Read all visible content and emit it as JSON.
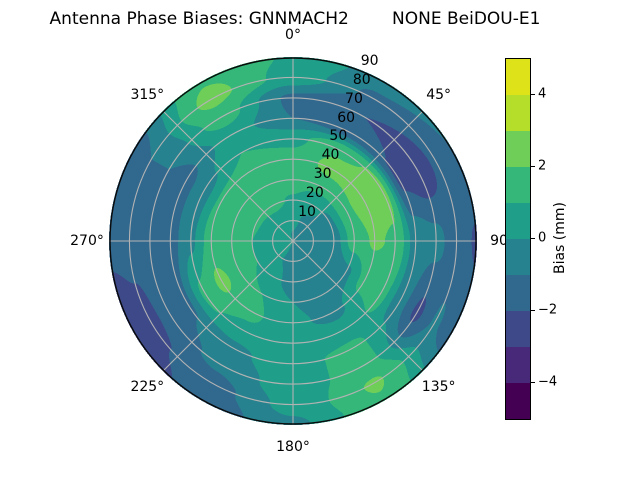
{
  "title": "Antenna Phase Biases: GNNMACH2        NONE BeiDOU-E1",
  "chart_data": {
    "type": "heatmap",
    "subtype": "polar_filled_contour",
    "title": "Antenna Phase Biases: GNNMACH2        NONE BeiDOU-E1",
    "background": "#ffffff",
    "grid_color": "#b3b3b3",
    "outline_color": "#0a0a0a",
    "angular_ticks": [
      {
        "angle_deg": 0,
        "label": "0°"
      },
      {
        "angle_deg": 45,
        "label": "45°"
      },
      {
        "angle_deg": 90,
        "label": "90"
      },
      {
        "angle_deg": 135,
        "label": "135°"
      },
      {
        "angle_deg": 180,
        "label": "180°"
      },
      {
        "angle_deg": 225,
        "label": "225°"
      },
      {
        "angle_deg": 270,
        "label": "270°"
      },
      {
        "angle_deg": 315,
        "label": "315°"
      }
    ],
    "radial_ticks": [
      {
        "zenith_deg": 10,
        "label": "10"
      },
      {
        "zenith_deg": 20,
        "label": "20"
      },
      {
        "zenith_deg": 30,
        "label": "30"
      },
      {
        "zenith_deg": 40,
        "label": "40"
      },
      {
        "zenith_deg": 50,
        "label": "50"
      },
      {
        "zenith_deg": 60,
        "label": "60"
      },
      {
        "zenith_deg": 70,
        "label": "70"
      },
      {
        "zenith_deg": 80,
        "label": "80"
      },
      {
        "zenith_deg": 90,
        "label": "90"
      }
    ],
    "radial_label_angle_deg": 22.5,
    "azimuth_deg": [
      0,
      30,
      60,
      90,
      120,
      150,
      180,
      210,
      240,
      270,
      300,
      330
    ],
    "zenith_deg": [
      0,
      10,
      20,
      30,
      40,
      50,
      60,
      70,
      80,
      90
    ],
    "bias_mm": [
      [
        -0.3,
        -0.4,
        -0.5,
        -0.5,
        -0.5,
        -0.4,
        -0.3,
        0.1,
        0.3,
        0.4,
        0.3,
        0.0
      ],
      [
        0.3,
        -0.2,
        -0.5,
        -0.6,
        -0.7,
        -0.7,
        -0.5,
        0.0,
        0.4,
        0.5,
        0.5,
        0.5
      ],
      [
        0.9,
        0.3,
        -0.2,
        -0.5,
        -0.9,
        -0.9,
        -0.5,
        0.4,
        1.0,
        1.0,
        1.1,
        1.2
      ],
      [
        1.4,
        1.3,
        1.8,
        1.5,
        -0.2,
        -0.6,
        0.0,
        1.0,
        1.6,
        1.2,
        1.3,
        1.5
      ],
      [
        1.3,
        2.4,
        2.6,
        2.1,
        1.3,
        -0.3,
        0.2,
        1.2,
        2.2,
        1.5,
        1.2,
        1.4
      ],
      [
        0.8,
        1.8,
        2.3,
        1.9,
        1.4,
        0.5,
        0.6,
        0.8,
        1.2,
        -0.2,
        -0.5,
        1.0
      ],
      [
        -1.0,
        -1.6,
        -2.2,
        -0.4,
        -0.6,
        1.2,
        0.8,
        -0.3,
        -1.2,
        -1.4,
        -1.3,
        0.5
      ],
      [
        -1.2,
        -2.0,
        -2.8,
        -0.7,
        -2.2,
        1.4,
        0.6,
        -0.8,
        -1.6,
        -1.6,
        -1.0,
        1.5
      ],
      [
        0.6,
        -1.2,
        -1.8,
        -1.5,
        -0.9,
        2.1,
        0.3,
        -1.4,
        -2.3,
        -1.7,
        -1.0,
        2.3
      ],
      [
        0.9,
        -0.5,
        -1.0,
        -2.1,
        -1.5,
        1.9,
        -0.2,
        -1.7,
        -2.6,
        -1.8,
        -1.4,
        1.9
      ]
    ],
    "levels": [
      -5,
      -4,
      -3,
      -2,
      -1,
      0,
      1,
      2,
      3,
      4,
      5
    ],
    "level_colors": [
      "#440154",
      "#482878",
      "#3e4989",
      "#31688e",
      "#26828e",
      "#1f9e89",
      "#35b779",
      "#6ece58",
      "#b5de2b",
      "#dde318"
    ],
    "colorbar": {
      "label": "Bias (mm)",
      "vmin": -5,
      "vmax": 5,
      "ticks": [
        {
          "value": 4,
          "label": "4"
        },
        {
          "value": 2,
          "label": "2"
        },
        {
          "value": 0,
          "label": "0"
        },
        {
          "value": -2,
          "label": "−2"
        },
        {
          "value": -4,
          "label": "−4"
        }
      ]
    }
  }
}
